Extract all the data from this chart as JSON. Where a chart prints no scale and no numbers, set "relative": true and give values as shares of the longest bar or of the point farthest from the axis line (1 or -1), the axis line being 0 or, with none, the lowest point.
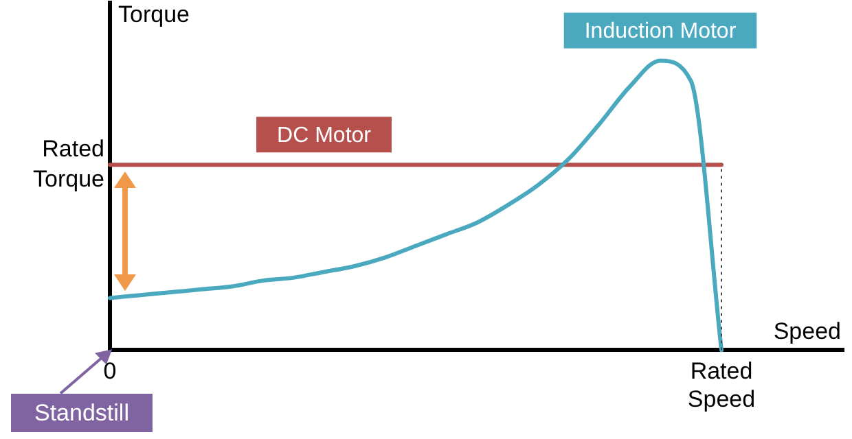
{
  "chart_data": {
    "type": "line",
    "xlabel": "Speed",
    "ylabel": "Torque",
    "relative": true,
    "marker": "none",
    "grid": false,
    "categories": [
      "0",
      null,
      null,
      null,
      null,
      null,
      null,
      null,
      null,
      null,
      null,
      null,
      null,
      null,
      null,
      null,
      null,
      null,
      null,
      null,
      "Rated Speed",
      null,
      null,
      null,
      null
    ],
    "series": [
      {
        "name": "Induction Motor",
        "color": "#4aa8bf",
        "values": [
          0.18,
          0.19,
          0.2,
          0.21,
          0.22,
          0.24,
          0.25,
          0.27,
          0.29,
          0.32,
          0.36,
          0.4,
          0.44,
          0.5,
          0.57,
          0.66,
          0.78,
          0.91,
          1,
          0.93,
          0,
          null,
          null,
          null,
          null
        ]
      },
      {
        "name": "DC Motor",
        "color": "#b5504d",
        "values": [
          0.64,
          0.64,
          0.64,
          0.64,
          0.64,
          0.64,
          0.64,
          0.64,
          0.64,
          0.64,
          0.64,
          0.64,
          0.64,
          0.64,
          0.64,
          0.64,
          0.64,
          0.64,
          0.64,
          0.64,
          0.64,
          null,
          null,
          null,
          null
        ]
      }
    ],
    "ref_lines": [
      {
        "axis": "x",
        "value": "Rated Speed",
        "line_style": "dotted",
        "color": "#444444"
      }
    ],
    "annotations": [
      "Rated Torque",
      "Standstill"
    ]
  }
}
